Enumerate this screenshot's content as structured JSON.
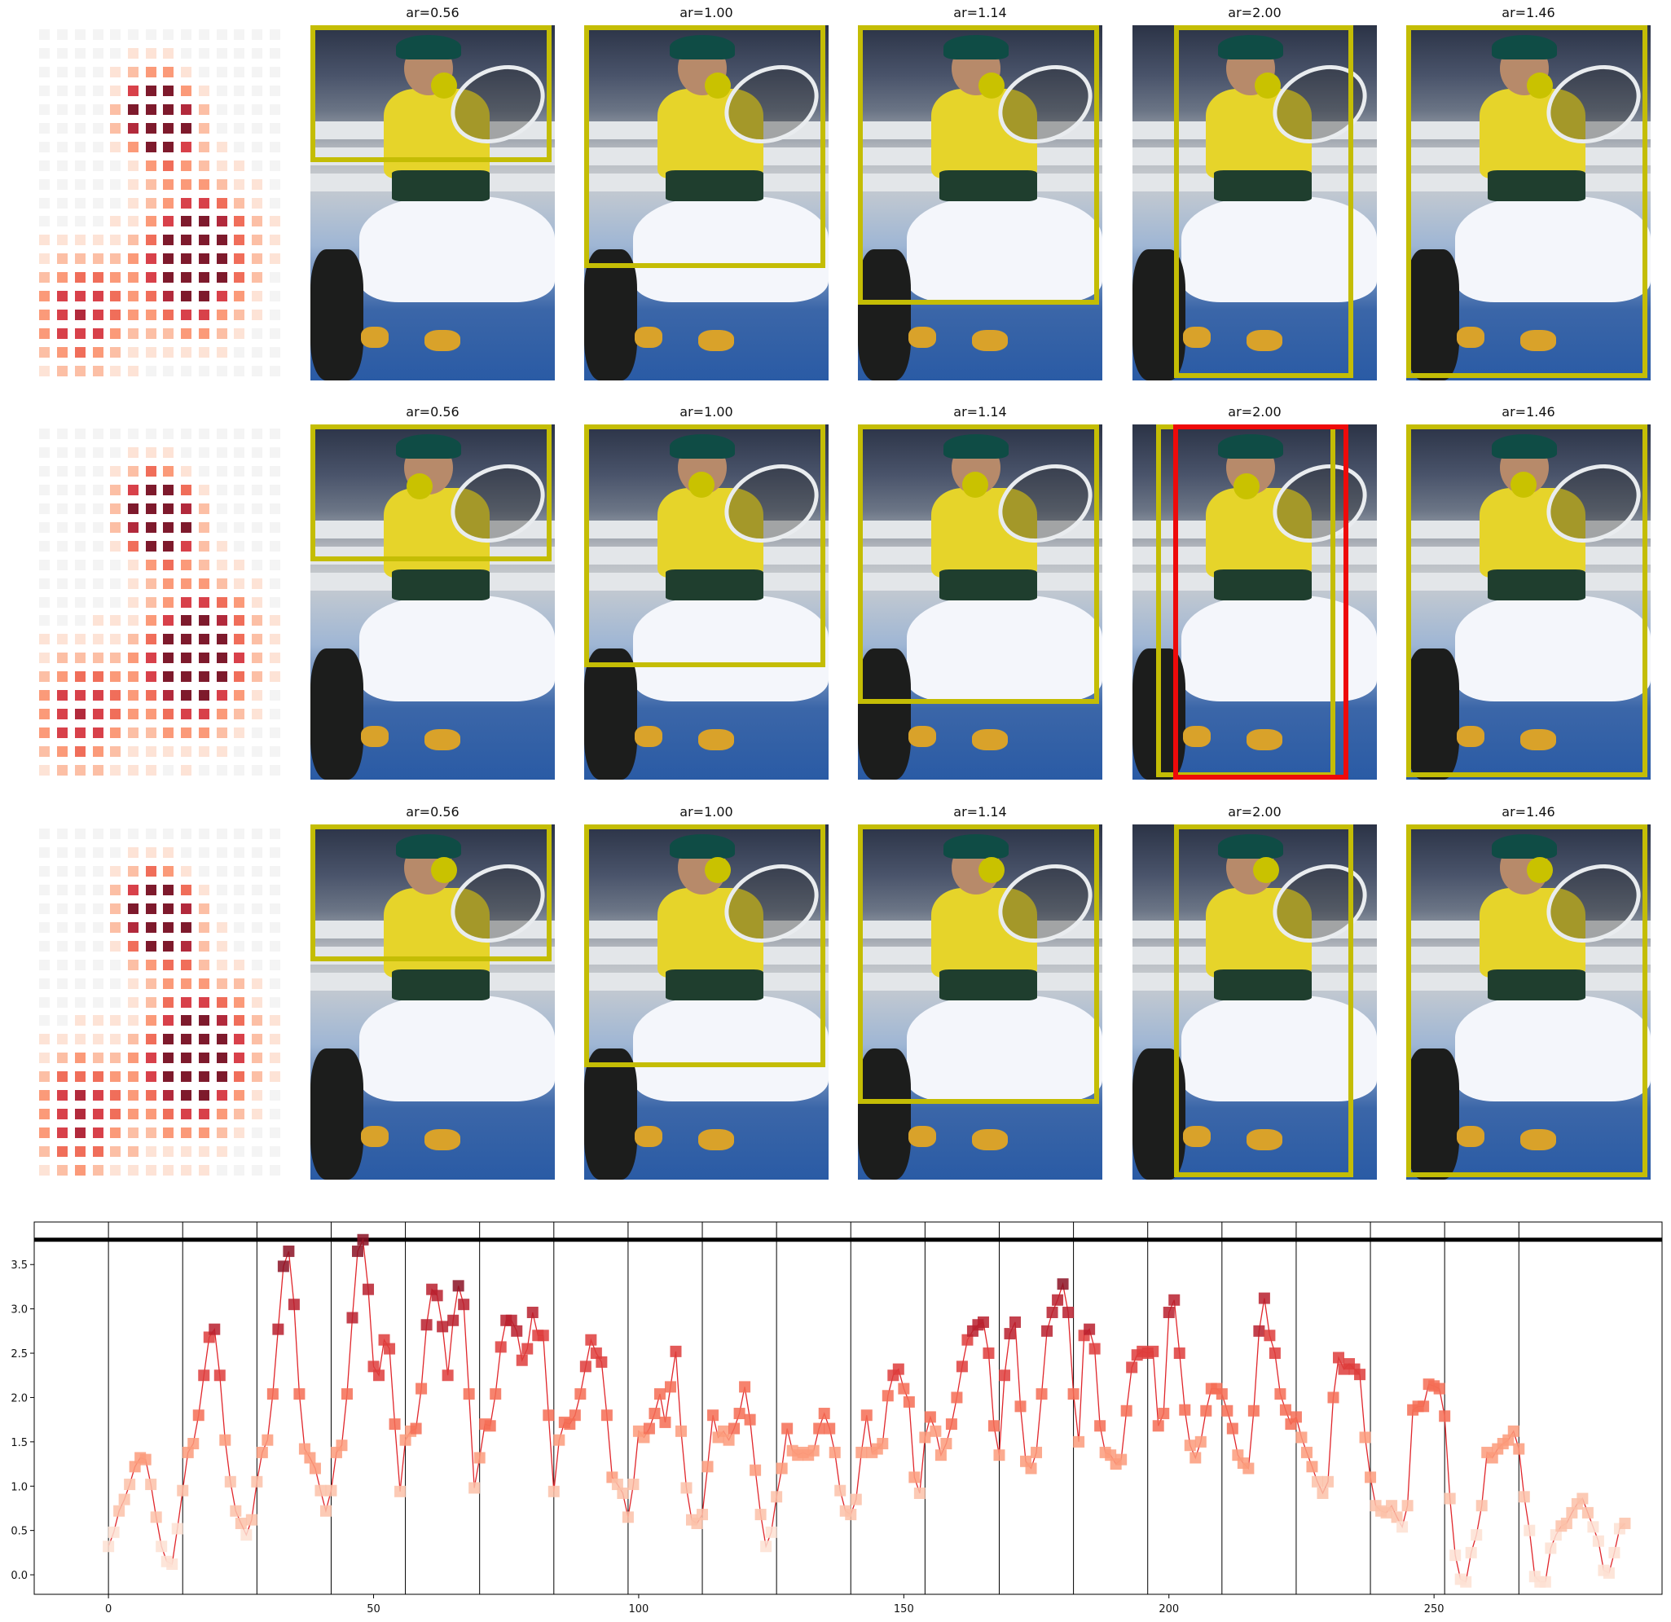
{
  "panel_title_prefix": "ar=",
  "rows": [
    {
      "titles": [
        "0.56",
        "1.00",
        "1.14",
        "2.00",
        "1.46"
      ]
    },
    {
      "titles": [
        "0.56",
        "1.00",
        "1.14",
        "2.00",
        "1.46"
      ]
    },
    {
      "titles": [
        "0.56",
        "1.00",
        "1.14",
        "2.00",
        "1.46"
      ]
    }
  ],
  "colors": {
    "box": "#c4bd05",
    "box_alt": "#ee0a0a",
    "dot": "#c9c200",
    "line": "#e0262b",
    "threshold": "#000000"
  },
  "chart_data": {
    "type": "line",
    "title": "",
    "xlabel": "",
    "ylabel": "",
    "xlim": [
      -14,
      293
    ],
    "ylim": [
      -0.22,
      3.98
    ],
    "xticks": [
      0,
      50,
      100,
      150,
      200,
      250
    ],
    "yticks": [
      0.0,
      0.5,
      1.0,
      1.5,
      2.0,
      2.5,
      3.0,
      3.5
    ],
    "ytick_labels": [
      "0.0",
      "0.5",
      "1.0",
      "1.5",
      "2.0",
      "2.5",
      "3.0",
      "3.5"
    ],
    "threshold": 3.78,
    "vertical_lines": [
      0,
      14,
      28,
      42,
      56,
      70,
      84,
      98,
      112,
      126,
      140,
      154,
      168,
      182,
      196,
      210,
      224,
      238,
      252,
      266
    ],
    "grid": false,
    "series": [
      {
        "marker": "square",
        "values": [
          0.32,
          0.48,
          0.72,
          0.85,
          1.02,
          1.22,
          1.32,
          1.3,
          1.02,
          0.65,
          0.32,
          0.15,
          0.12,
          0.52,
          0.95,
          1.38,
          1.48,
          1.8,
          2.25,
          2.68,
          2.77,
          2.25,
          1.52,
          1.05,
          0.72,
          0.58,
          0.45,
          0.62,
          1.05,
          1.38,
          1.52,
          2.04,
          2.77,
          3.48,
          3.65,
          3.05,
          2.04,
          1.42,
          1.32,
          1.2,
          0.95,
          0.72,
          0.95,
          1.38,
          1.46,
          2.04,
          2.9,
          3.65,
          3.78,
          3.22,
          2.35,
          2.25,
          2.65,
          2.55,
          1.7,
          0.94,
          1.52,
          1.62,
          1.65,
          2.1,
          2.82,
          3.22,
          3.15,
          2.8,
          2.25,
          2.87,
          3.26,
          3.05,
          2.04,
          0.98,
          1.32,
          1.7,
          1.68,
          2.04,
          2.57,
          2.87,
          2.87,
          2.75,
          2.42,
          2.55,
          2.96,
          2.7,
          2.7,
          1.8,
          0.94,
          1.52,
          1.72,
          1.7,
          1.8,
          2.04,
          2.35,
          2.65,
          2.5,
          2.4,
          1.8,
          1.1,
          1.02,
          0.92,
          0.65,
          1.02,
          1.62,
          1.55,
          1.65,
          1.82,
          2.04,
          1.72,
          2.12,
          2.52,
          1.62,
          0.98,
          0.62,
          0.58,
          0.68,
          1.22,
          1.8,
          1.55,
          1.62,
          1.52,
          1.65,
          1.82,
          2.12,
          1.75,
          1.18,
          0.68,
          0.32,
          0.48,
          0.88,
          1.2,
          1.65,
          1.4,
          1.35,
          1.38,
          1.35,
          1.4,
          1.65,
          1.82,
          1.65,
          1.38,
          0.95,
          0.72,
          0.68,
          0.85,
          1.38,
          1.8,
          1.38,
          1.42,
          1.48,
          2.02,
          2.25,
          2.32,
          2.1,
          1.95,
          1.1,
          0.92,
          1.55,
          1.78,
          1.62,
          1.35,
          1.48,
          1.7,
          2.0,
          2.35,
          2.65,
          2.75,
          2.82,
          2.85,
          2.5,
          1.68,
          1.35,
          2.25,
          2.72,
          2.85,
          1.9,
          1.28,
          1.2,
          1.38,
          2.04,
          2.75,
          2.96,
          3.1,
          3.28,
          2.96,
          2.04,
          1.5,
          2.7,
          2.77,
          2.55,
          1.68,
          1.38,
          1.35,
          1.25,
          1.3,
          1.85,
          2.34,
          2.48,
          2.52,
          2.5,
          2.52,
          1.68,
          1.82,
          2.96,
          3.1,
          2.5,
          1.86,
          1.46,
          1.32,
          1.5,
          1.85,
          2.1,
          2.1,
          2.04,
          1.85,
          1.65,
          1.35,
          1.26,
          1.2,
          1.85,
          2.75,
          3.12,
          2.7,
          2.5,
          2.04,
          1.86,
          1.7,
          1.78,
          1.55,
          1.38,
          1.22,
          1.05,
          0.92,
          1.05,
          2.0,
          2.45,
          2.32,
          2.38,
          2.32,
          2.26,
          1.55,
          1.1,
          0.78,
          0.72,
          0.7,
          0.78,
          0.65,
          0.54,
          0.78,
          1.86,
          1.9,
          1.9,
          2.15,
          2.13,
          2.1,
          1.79,
          0.86,
          0.22,
          -0.05,
          -0.08,
          0.25,
          0.45,
          0.78,
          1.38,
          1.32,
          1.42,
          1.48,
          1.52,
          1.62,
          1.42,
          0.88,
          0.5,
          -0.02,
          -0.08,
          -0.08,
          0.3,
          0.45,
          0.55,
          0.58,
          0.7,
          0.8,
          0.86,
          0.7,
          0.54,
          0.38,
          0.05,
          0.02,
          0.25,
          0.52,
          0.58
        ]
      }
    ]
  }
}
